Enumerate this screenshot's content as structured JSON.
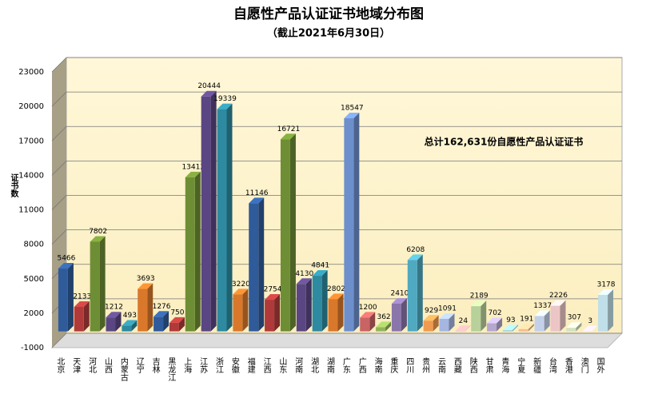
{
  "chart_data": {
    "type": "bar3d",
    "title": "自愿性产品认证证书地域分布图",
    "subtitle": "（截止2021年6月30日）",
    "y_label": "证书数",
    "annotation": "总计162,631份自愿性产品认证证书",
    "categories": [
      "北京",
      "天津",
      "河北",
      "山西",
      "内蒙古",
      "辽宁",
      "吉林",
      "黑龙江",
      "上海",
      "江苏",
      "浙江",
      "安徽",
      "福建",
      "江西",
      "山东",
      "河南",
      "湖北",
      "湖南",
      "广东",
      "广西",
      "海南",
      "重庆",
      "四川",
      "贵州",
      "云南",
      "西藏",
      "陕西",
      "甘肃",
      "青海",
      "宁夏",
      "新疆",
      "台湾",
      "香港",
      "澳门",
      "国外"
    ],
    "values": [
      5466,
      2133,
      7802,
      1212,
      493,
      3693,
      1276,
      750,
      13412,
      20444,
      19339,
      3220,
      11146,
      2754,
      16721,
      4130,
      4841,
      2802,
      18547,
      1200,
      362,
      2410,
      6208,
      929,
      1091,
      24,
      2189,
      702,
      93,
      191,
      1337,
      2226,
      307,
      3,
      3178
    ],
    "colors": [
      "#2f5b9a",
      "#b03a3a",
      "#6e8e35",
      "#5a4682",
      "#2e8aa0",
      "#d9782b",
      "#2f5b9a",
      "#b03a3a",
      "#6e8e35",
      "#5a4682",
      "#2e8aa0",
      "#d9782b",
      "#2f5b9a",
      "#b03a3a",
      "#6e8e35",
      "#5a4682",
      "#2e8aa0",
      "#d9782b",
      "#6d8fcc",
      "#c86464",
      "#94b45a",
      "#8a76aa",
      "#4fa9c0",
      "#f09a50",
      "#a5b6e0",
      "#e0a5a5",
      "#b8d09a",
      "#b5a8cc",
      "#98cad8",
      "#f4bb90",
      "#c4d0ea",
      "#ecc6c6",
      "#d3e2c0",
      "#cdc4de",
      "#c0dfe8"
    ],
    "ylim": [
      -1000,
      23000
    ],
    "yticks": [
      -1000,
      2000,
      5000,
      8000,
      11000,
      14000,
      17000,
      20000,
      23000
    ],
    "grid": true
  }
}
